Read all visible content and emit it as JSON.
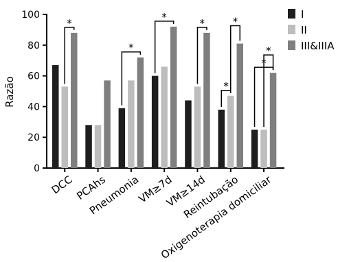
{
  "chart_data": {
    "type": "bar",
    "ylabel": "Razão",
    "ylim": [
      0,
      100
    ],
    "yticks": [
      "0",
      "20",
      "40",
      "60",
      "80",
      "100"
    ],
    "categories": [
      "DCC",
      "PCAhs",
      "Pneumonia",
      "VM≥7d",
      "VM≥14d",
      "Reintubação",
      "Oxigenoterapia domiciliar"
    ],
    "series": [
      {
        "name": "I",
        "color": "#1e1e1e",
        "values": [
          67,
          28,
          39,
          60,
          44,
          38,
          25
        ]
      },
      {
        "name": "II",
        "color": "#bdbdbd",
        "values": [
          53,
          28,
          57,
          66,
          53,
          47,
          25
        ]
      },
      {
        "name": "III&IIIA",
        "color": "#7f7f7f",
        "values": [
          88,
          57,
          72,
          92,
          88,
          81,
          62
        ]
      }
    ],
    "significance": [
      {
        "category": "DCC",
        "from": "II",
        "to": "III&IIIA",
        "label": "*"
      },
      {
        "category": "Pneumonia",
        "from": "I",
        "to": "III&IIIA",
        "label": "*"
      },
      {
        "category": "VM≥7d",
        "from": "I",
        "to": "III&IIIA",
        "label": "*"
      },
      {
        "category": "VM≥14d",
        "from": "II",
        "to": "III&IIIA",
        "label": "*"
      },
      {
        "category": "Reintubação",
        "from": "I",
        "to": "II",
        "label": "*"
      },
      {
        "category": "Reintubação",
        "from": "II",
        "to": "III&IIIA",
        "label": "*"
      },
      {
        "category": "Oxigenoterapia domiciliar",
        "from": "I",
        "to": "III&IIIA",
        "label": "*"
      },
      {
        "category": "Oxigenoterapia domiciliar",
        "from": "II",
        "to": "III&IIIA",
        "label": "*"
      }
    ],
    "legend_position": "top-right",
    "grid": false
  }
}
